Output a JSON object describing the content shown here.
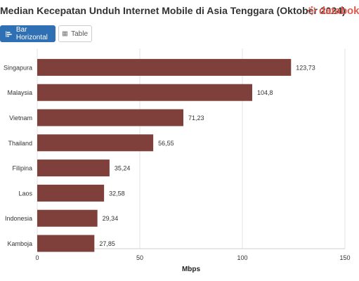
{
  "header": {
    "title": "Median Kecepatan Unduh Internet Mobile di Asia Tenggara (Oktober 2024)",
    "logo_text": "databoks"
  },
  "tabs": [
    {
      "label": "Bar Horizontal",
      "active": true
    },
    {
      "label": "Table",
      "active": false
    }
  ],
  "colors": {
    "bar": "#7f3f3b",
    "accent": "#2f6fb3",
    "logo": "#e15a4f"
  },
  "chart_data": {
    "type": "bar",
    "orientation": "horizontal",
    "categories": [
      "Singapura",
      "Malaysia",
      "Vietnam",
      "Thailand",
      "Filipina",
      "Laos",
      "Indonesia",
      "Kamboja"
    ],
    "values": [
      123.73,
      104.8,
      71.23,
      56.55,
      35.24,
      32.58,
      29.34,
      27.85
    ],
    "value_labels": [
      "123,73",
      "104,8",
      "71,23",
      "56,55",
      "35,24",
      "32,58",
      "29,34",
      "27,85"
    ],
    "xlabel": "Mbps",
    "xlim": [
      0,
      150
    ],
    "xticks": [
      0,
      50,
      100,
      150
    ],
    "grid": true
  }
}
